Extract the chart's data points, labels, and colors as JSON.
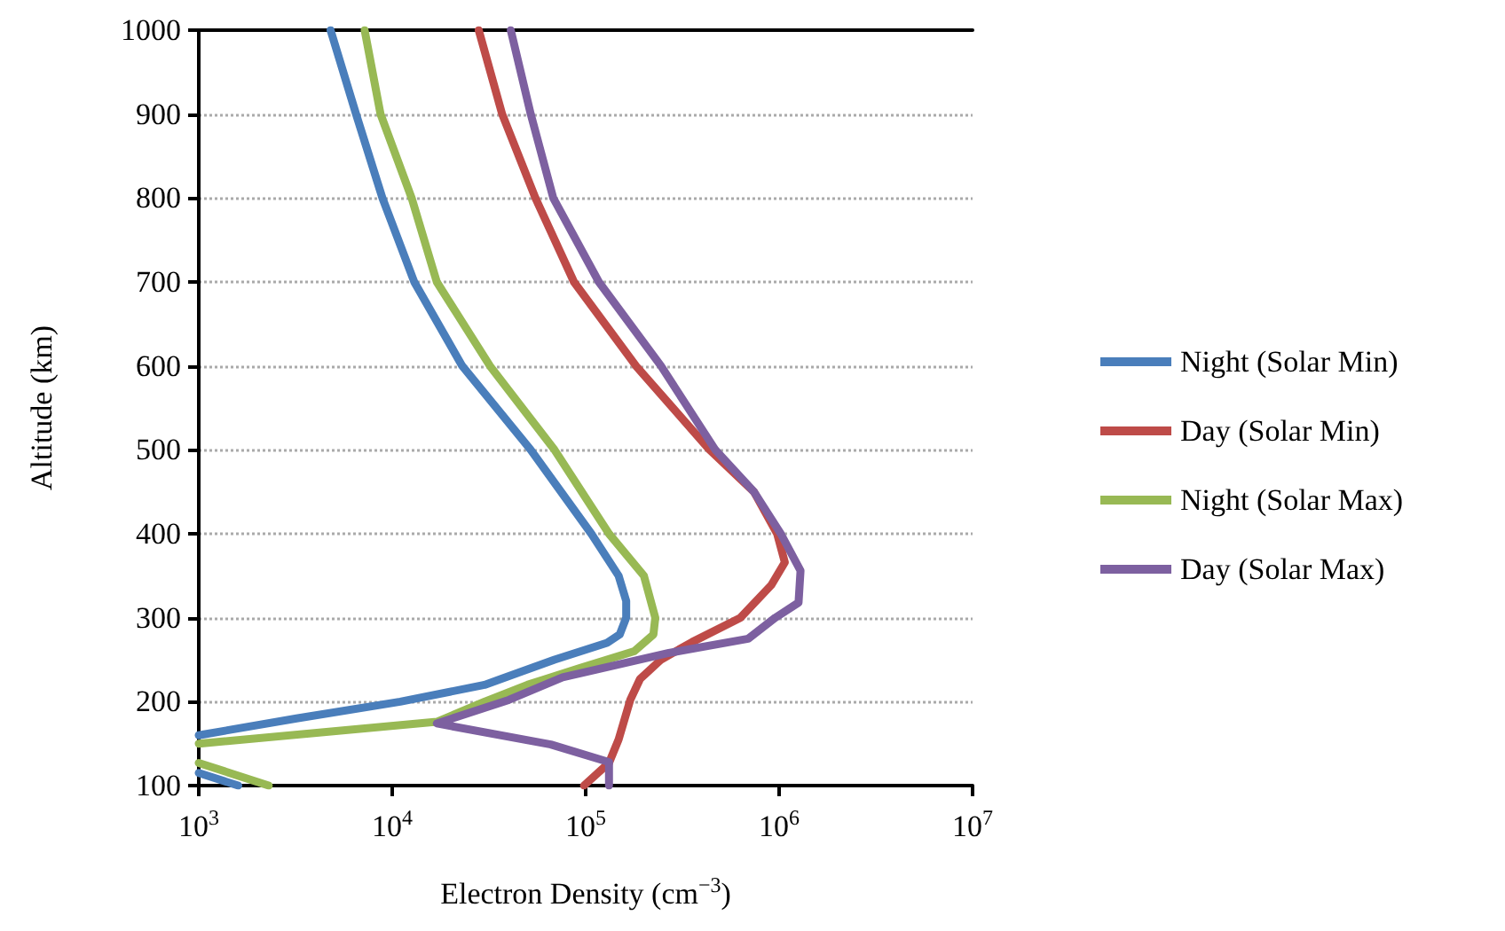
{
  "chart_data": {
    "type": "line",
    "xlabel": "Electron Density (cm$^{−3}$)",
    "ylabel": "Altitude (km)",
    "log": "x",
    "xlim": [
      1000,
      10000000
    ],
    "xticks": [
      {
        "value": 1000,
        "label": "10$^{3}$"
      },
      {
        "value": 10000,
        "label": "10$^{4}$"
      },
      {
        "value": 100000,
        "label": "10$^{5}$"
      },
      {
        "value": 1000000,
        "label": "10$^{6}$"
      },
      {
        "value": 10000000,
        "label": "10$^{7}$"
      }
    ],
    "ylim": [
      100,
      1000
    ],
    "yticks": [
      100,
      200,
      300,
      400,
      500,
      600,
      700,
      800,
      900,
      1000
    ],
    "grid": "y",
    "legend": "right",
    "marker": "none",
    "line_style": "solid",
    "series": [
      {
        "name": "Night (Solar Min)",
        "color": "#4a7ebb",
        "x": [
          4800,
          6500,
          8900,
          13000,
          23000,
          52000,
          107000,
          148000,
          162000,
          162000,
          150000,
          129000,
          69000,
          30000,
          11000,
          3200,
          1000,
          null,
          1000,
          1600
        ],
        "values": [
          1000,
          900,
          800,
          700,
          600,
          500,
          400,
          350,
          320,
          300,
          280,
          270,
          250,
          220,
          200,
          180,
          160,
          null,
          115,
          100
        ]
      },
      {
        "name": "Day (Solar Min)",
        "color": "#be4b48",
        "x": [
          28000,
          37000,
          55000,
          87000,
          182000,
          437000,
          741000,
          977000,
          1070000,
          912000,
          631000,
          355000,
          245000,
          191000,
          170000,
          148000,
          132000,
          98000
        ],
        "values": [
          1000,
          900,
          800,
          700,
          600,
          500,
          450,
          400,
          366,
          339,
          300,
          271,
          250,
          227,
          202,
          155,
          127,
          100
        ]
      },
      {
        "name": "Night (Solar Max)",
        "color": "#98b954",
        "x": [
          7200,
          8700,
          12600,
          17000,
          32000,
          69000,
          132000,
          200000,
          229000,
          224000,
          178000,
          93000,
          50000,
          30000,
          17000,
          1000,
          null,
          1000,
          2300
        ],
        "values": [
          1000,
          900,
          800,
          700,
          600,
          500,
          400,
          350,
          300,
          280,
          260,
          240,
          220,
          200,
          176,
          150,
          null,
          127,
          100
        ]
      },
      {
        "name": "Day (Solar Max)",
        "color": "#7d60a0",
        "x": [
          41000,
          52000,
          68000,
          117000,
          245000,
          468000,
          741000,
          1020000,
          1290000,
          1260000,
          955000,
          692000,
          269000,
          76000,
          40000,
          17000,
          66000,
          132000,
          132000
        ],
        "values": [
          1000,
          900,
          800,
          700,
          600,
          500,
          450,
          400,
          356,
          318,
          300,
          275,
          258,
          229,
          202,
          174,
          149,
          128,
          100
        ]
      }
    ]
  }
}
